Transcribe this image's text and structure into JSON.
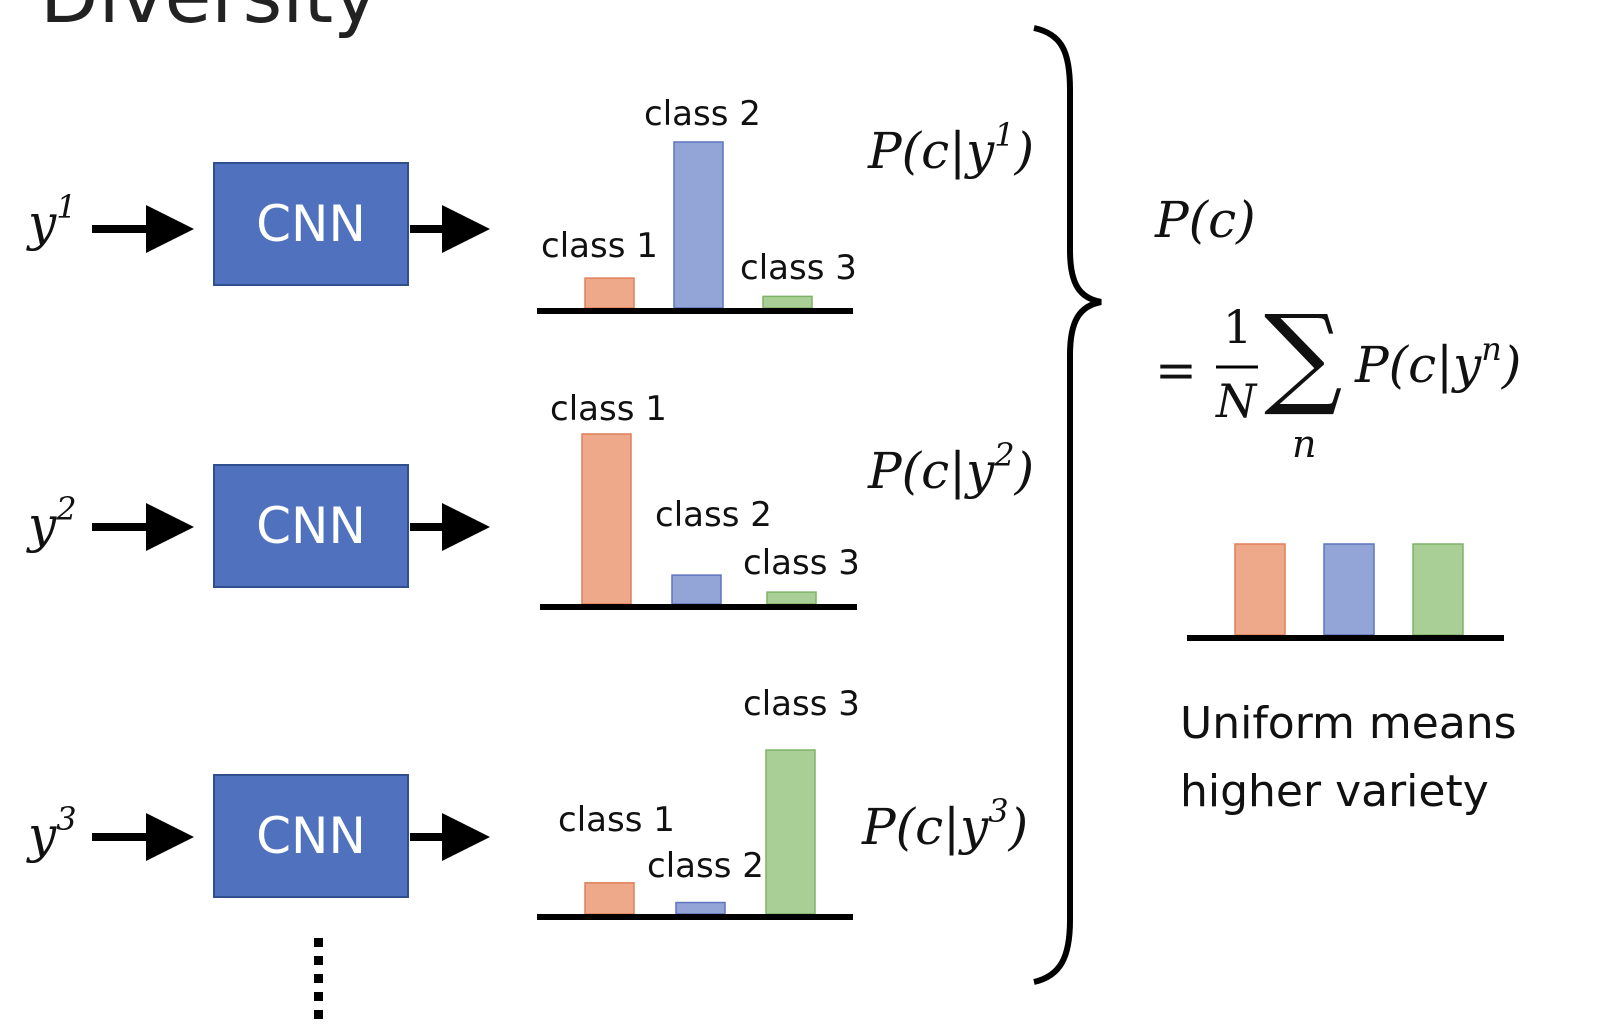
{
  "title": "Diversity",
  "inputs": [
    {
      "base": "y",
      "sup": "1"
    },
    {
      "base": "y",
      "sup": "2"
    },
    {
      "base": "y",
      "sup": "3"
    }
  ],
  "cnn_label": "CNN",
  "conditionals": [
    {
      "text": "P(c|y",
      "sup": "1",
      "close": ")"
    },
    {
      "text": "P(c|y",
      "sup": "2",
      "close": ")"
    },
    {
      "text": "P(c|y",
      "sup": "3",
      "close": ")"
    }
  ],
  "marginal": "P(c)",
  "formula": {
    "equals": "=",
    "numerator": "1",
    "denominator": "N",
    "sum": "∑",
    "index": "n",
    "term": "P(c|y",
    "term_sup": "n",
    "term_close": ")"
  },
  "note_line1": "Uniform means",
  "note_line2": "higher variety",
  "bottom_link": "bottom_text_fragment",
  "colors": {
    "class1": "#eea98a",
    "class2": "#93a4d6",
    "class3": "#a9cf97",
    "cnn": "#4f71be"
  },
  "chart_data": [
    {
      "type": "bar",
      "categories": [
        "class 1",
        "class 2",
        "class 3"
      ],
      "values": [
        0.18,
        1.0,
        0.07
      ],
      "title": "",
      "ylim": [
        0,
        1
      ]
    },
    {
      "type": "bar",
      "categories": [
        "class 1",
        "class 2",
        "class 3"
      ],
      "values": [
        1.0,
        0.17,
        0.07
      ],
      "title": "",
      "ylim": [
        0,
        1
      ]
    },
    {
      "type": "bar",
      "categories": [
        "class 1",
        "class 2",
        "class 3"
      ],
      "values": [
        0.19,
        0.07,
        1.0
      ],
      "title": "",
      "ylim": [
        0,
        1
      ]
    },
    {
      "type": "bar",
      "categories": [
        "",
        "",
        ""
      ],
      "values": [
        1.0,
        1.0,
        1.0
      ],
      "title": "",
      "ylim": [
        0,
        1
      ]
    }
  ]
}
